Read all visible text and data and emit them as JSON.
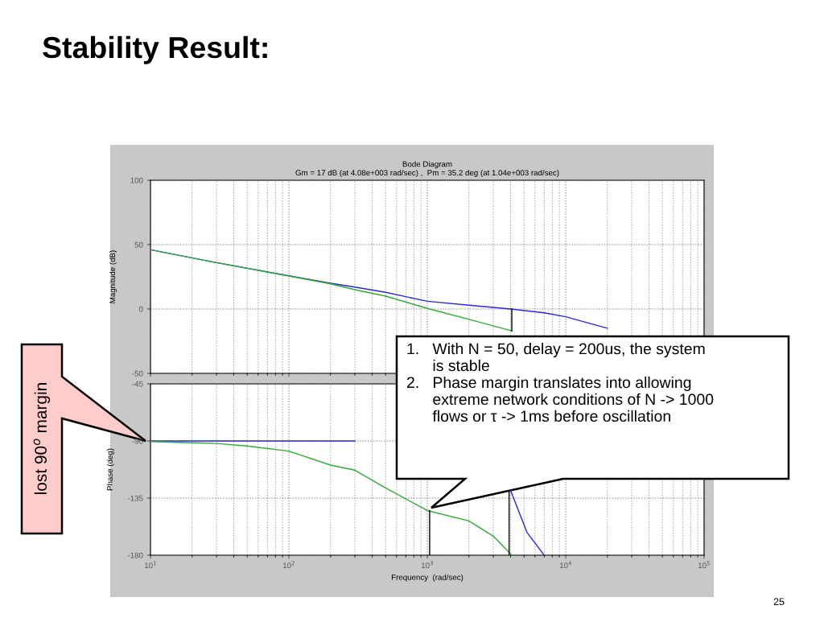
{
  "chart_data": [
    {
      "type": "line",
      "title": "Bode Diagram",
      "subtitle": "Gm = 17 dB (at 4.08e+003 rad/sec) ,  Pm = 35.2 deg (at 1.04e+003 rad/sec)",
      "ylabel": "Magnitude (dB)",
      "log": "x",
      "grid": true,
      "tick_labels": "y",
      "xlim": [
        10,
        100000
      ],
      "xticks": [
        10,
        100,
        1000,
        10000,
        100000
      ],
      "ylim": [
        -50,
        100
      ],
      "yticks": [
        -50,
        0,
        50,
        100
      ],
      "series": [
        {
          "color": "#2a2ad0",
          "x": [
            10,
            30,
            100,
            200,
            300,
            500,
            1000,
            2000,
            4000,
            7000,
            10000,
            20000
          ],
          "values": [
            46,
            36,
            25.8,
            20,
            17,
            13,
            6,
            3,
            0,
            -3,
            -6,
            -15
          ]
        },
        {
          "color": "#33aa33",
          "x": [
            10,
            30,
            100,
            200,
            300,
            500,
            1040,
            2000,
            4080
          ],
          "values": [
            46,
            36,
            25.6,
            19.5,
            15,
            10,
            0,
            -8,
            -17
          ]
        },
        {
          "color": "#000000",
          "x": [
            4080,
            4080
          ],
          "values": [
            0,
            -17
          ]
        }
      ],
      "annotations": [
        "Stability Result:",
        "25"
      ]
    },
    {
      "type": "line",
      "xlabel": "Frequency  (rad/sec)",
      "ylabel": "Phase (deg)",
      "log": "x",
      "grid": true,
      "xlim": [
        10,
        100000
      ],
      "xticks": [
        {
          "value": 10,
          "label": "10$^{1}$"
        },
        {
          "value": 100,
          "label": "10$^{2}$"
        },
        {
          "value": 1000,
          "label": "10$^{3}$"
        },
        {
          "value": 10000,
          "label": "10$^{4}$"
        },
        {
          "value": 100000,
          "label": "10$^{5}$"
        }
      ],
      "ylim": [
        -180,
        -45
      ],
      "yticks": [
        -180,
        -135,
        -90,
        -45
      ],
      "series": [
        {
          "color": "#2a2ad0",
          "x": [
            10,
            100,
            300
          ],
          "values": [
            -90,
            -90,
            -90
          ]
        },
        {
          "color": "#2a2ad0",
          "x": [
            4000,
            5250,
            7000
          ],
          "values": [
            -129,
            -162,
            -180
          ]
        },
        {
          "color": "#33aa33",
          "x": [
            10,
            30,
            50,
            100,
            200,
            300,
            500,
            1000,
            2000,
            3000,
            4080
          ],
          "values": [
            -90.5,
            -92,
            -94,
            -98,
            -109,
            -113,
            -127,
            -144.8,
            -153,
            -165,
            -180
          ]
        },
        {
          "color": "#000000",
          "x": [
            1040,
            1040
          ],
          "values": [
            -180,
            -144.8
          ]
        },
        {
          "color": "#000000",
          "x": [
            3900,
            3900
          ],
          "values": [
            -180,
            -130
          ]
        }
      ],
      "annotations": [
        "1.   With N = 50, delay = 200us, the system\n      is stable\n2.   Phase margin translates into allowing\n      extreme network conditions of N -> 1000\n      flows or τ -> 1ms before oscillation",
        "lost 90$^{o}$ margin"
      ]
    }
  ]
}
